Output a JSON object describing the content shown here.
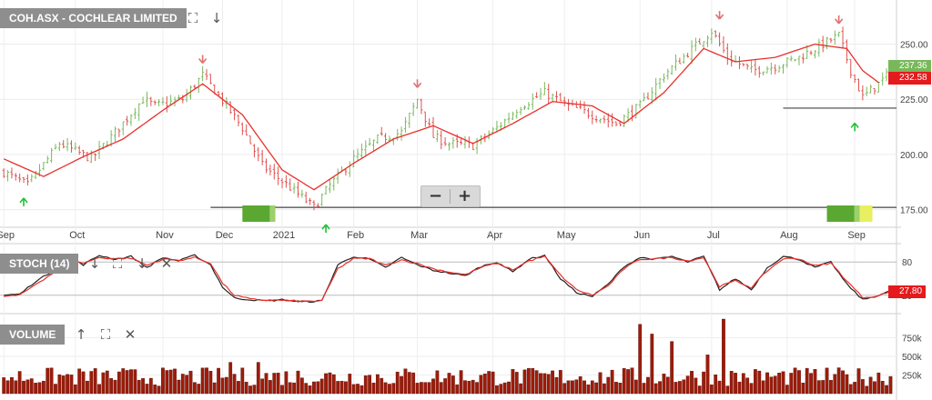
{
  "chart_header": {
    "title": "COH.ASX - COCHLEAR LIMITED",
    "expand_icon": "expand-icon",
    "download_icon": "arrow-down-icon"
  },
  "stoch_header": {
    "title": "STOCH (14)",
    "icons": [
      "arrow-down-icon",
      "expand-icon",
      "arrow-down-icon",
      "close-icon"
    ]
  },
  "volume_header": {
    "title": "VOLUME",
    "icons": [
      "arrow-up-icon",
      "expand-icon",
      "close-icon"
    ]
  },
  "zoom": {
    "minus": "−",
    "plus": "+"
  },
  "price_tags": {
    "last": "237.36",
    "ma": "232.58",
    "stoch": "27.80"
  },
  "colors": {
    "up_candle": "#7ab85e",
    "down_candle": "#e05050",
    "ma_line": "#e8302a",
    "stoch_k": "#222222",
    "stoch_d": "#e8302a",
    "volume_bar": "#9e1b0a",
    "buy_arrow": "#22c03a",
    "sell_arrow": "#e07070"
  },
  "chart_data": [
    {
      "type": "line",
      "panel": "price",
      "yticks": [
        "250.00",
        "225.00",
        "200.00",
        "175.00"
      ],
      "ylim": [
        167,
        270
      ],
      "x_ticks": [
        "Sep",
        "Oct",
        "Nov",
        "Dec",
        "2021",
        "Feb",
        "Mar",
        "Apr",
        "May",
        "Jun",
        "Jul",
        "Aug",
        "Sep"
      ],
      "x_tick_positions": [
        0,
        18,
        40,
        55,
        70,
        88,
        104,
        123,
        141,
        160,
        178,
        197,
        214
      ],
      "close_anchors": [
        [
          0,
          192
        ],
        [
          6,
          186
        ],
        [
          14,
          205
        ],
        [
          22,
          198
        ],
        [
          28,
          210
        ],
        [
          35,
          225
        ],
        [
          38,
          222
        ],
        [
          45,
          225
        ],
        [
          50,
          236
        ],
        [
          56,
          222
        ],
        [
          60,
          212
        ],
        [
          65,
          195
        ],
        [
          72,
          185
        ],
        [
          78,
          176
        ],
        [
          82,
          186
        ],
        [
          88,
          198
        ],
        [
          94,
          207
        ],
        [
          100,
          210
        ],
        [
          104,
          225
        ],
        [
          108,
          208
        ],
        [
          112,
          205
        ],
        [
          118,
          204
        ],
        [
          124,
          212
        ],
        [
          130,
          222
        ],
        [
          136,
          228
        ],
        [
          142,
          222
        ],
        [
          148,
          218
        ],
        [
          154,
          214
        ],
        [
          160,
          222
        ],
        [
          166,
          236
        ],
        [
          172,
          246
        ],
        [
          178,
          256
        ],
        [
          182,
          244
        ],
        [
          188,
          238
        ],
        [
          194,
          240
        ],
        [
          200,
          244
        ],
        [
          206,
          250
        ],
        [
          210,
          254
        ],
        [
          213,
          238
        ],
        [
          216,
          226
        ],
        [
          220,
          232
        ],
        [
          223,
          237.36
        ]
      ],
      "ma_anchors": [
        [
          0,
          198
        ],
        [
          10,
          190
        ],
        [
          20,
          199
        ],
        [
          30,
          207
        ],
        [
          40,
          220
        ],
        [
          50,
          232
        ],
        [
          60,
          218
        ],
        [
          70,
          193
        ],
        [
          78,
          184
        ],
        [
          88,
          196
        ],
        [
          98,
          207
        ],
        [
          108,
          213
        ],
        [
          118,
          205
        ],
        [
          128,
          214
        ],
        [
          138,
          224
        ],
        [
          148,
          222
        ],
        [
          156,
          214
        ],
        [
          166,
          228
        ],
        [
          176,
          248
        ],
        [
          184,
          242
        ],
        [
          194,
          244
        ],
        [
          204,
          250
        ],
        [
          212,
          248
        ],
        [
          216,
          238
        ],
        [
          220,
          232.58
        ]
      ],
      "support_line_low": 176,
      "support_line_high": 221,
      "buy_signals": [
        [
          5,
          186
        ],
        [
          81,
          174
        ],
        [
          214,
          220
        ]
      ],
      "sell_signals": [
        [
          50,
          236
        ],
        [
          104,
          225
        ],
        [
          180,
          256
        ],
        [
          210,
          254
        ]
      ]
    },
    {
      "type": "line",
      "panel": "stochastic",
      "name": "STOCH (14)",
      "yticks": [
        "80",
        "20"
      ],
      "ylim": [
        0,
        100
      ],
      "k_anchors": [
        [
          0,
          20
        ],
        [
          4,
          22
        ],
        [
          8,
          45
        ],
        [
          12,
          62
        ],
        [
          16,
          88
        ],
        [
          20,
          75
        ],
        [
          24,
          92
        ],
        [
          28,
          85
        ],
        [
          32,
          90
        ],
        [
          36,
          70
        ],
        [
          40,
          88
        ],
        [
          44,
          82
        ],
        [
          48,
          92
        ],
        [
          52,
          75
        ],
        [
          55,
          35
        ],
        [
          58,
          15
        ],
        [
          62,
          12
        ],
        [
          66,
          10
        ],
        [
          70,
          12
        ],
        [
          75,
          8
        ],
        [
          80,
          10
        ],
        [
          84,
          75
        ],
        [
          88,
          90
        ],
        [
          92,
          85
        ],
        [
          96,
          70
        ],
        [
          100,
          88
        ],
        [
          104,
          75
        ],
        [
          108,
          65
        ],
        [
          112,
          60
        ],
        [
          116,
          55
        ],
        [
          120,
          72
        ],
        [
          124,
          80
        ],
        [
          128,
          62
        ],
        [
          132,
          85
        ],
        [
          136,
          92
        ],
        [
          140,
          50
        ],
        [
          144,
          25
        ],
        [
          148,
          18
        ],
        [
          152,
          40
        ],
        [
          156,
          72
        ],
        [
          160,
          88
        ],
        [
          164,
          85
        ],
        [
          168,
          90
        ],
        [
          172,
          80
        ],
        [
          176,
          90
        ],
        [
          180,
          30
        ],
        [
          184,
          50
        ],
        [
          188,
          30
        ],
        [
          192,
          70
        ],
        [
          196,
          90
        ],
        [
          200,
          85
        ],
        [
          204,
          70
        ],
        [
          208,
          80
        ],
        [
          212,
          40
        ],
        [
          216,
          12
        ],
        [
          220,
          20
        ],
        [
          223,
          27.8
        ]
      ],
      "d_anchors": [
        [
          0,
          18
        ],
        [
          4,
          20
        ],
        [
          8,
          40
        ],
        [
          12,
          58
        ],
        [
          16,
          82
        ],
        [
          20,
          78
        ],
        [
          24,
          88
        ],
        [
          28,
          86
        ],
        [
          32,
          87
        ],
        [
          36,
          74
        ],
        [
          40,
          85
        ],
        [
          44,
          83
        ],
        [
          48,
          88
        ],
        [
          52,
          78
        ],
        [
          55,
          42
        ],
        [
          58,
          20
        ],
        [
          62,
          13
        ],
        [
          66,
          11
        ],
        [
          70,
          11
        ],
        [
          75,
          9
        ],
        [
          80,
          10
        ],
        [
          84,
          68
        ],
        [
          88,
          86
        ],
        [
          92,
          86
        ],
        [
          96,
          74
        ],
        [
          100,
          84
        ],
        [
          104,
          77
        ],
        [
          108,
          68
        ],
        [
          112,
          62
        ],
        [
          116,
          57
        ],
        [
          120,
          70
        ],
        [
          124,
          78
        ],
        [
          128,
          66
        ],
        [
          132,
          82
        ],
        [
          136,
          90
        ],
        [
          140,
          56
        ],
        [
          144,
          30
        ],
        [
          148,
          20
        ],
        [
          152,
          37
        ],
        [
          156,
          68
        ],
        [
          160,
          85
        ],
        [
          164,
          86
        ],
        [
          168,
          88
        ],
        [
          172,
          82
        ],
        [
          176,
          88
        ],
        [
          180,
          36
        ],
        [
          184,
          46
        ],
        [
          188,
          34
        ],
        [
          192,
          64
        ],
        [
          196,
          86
        ],
        [
          200,
          86
        ],
        [
          204,
          73
        ],
        [
          208,
          78
        ],
        [
          212,
          46
        ],
        [
          216,
          16
        ],
        [
          220,
          19
        ],
        [
          223,
          27.8
        ]
      ]
    },
    {
      "type": "bar",
      "panel": "volume",
      "name": "VOLUME",
      "yticks": [
        "750k",
        "500k",
        "250k"
      ],
      "ylim": [
        0,
        1000000
      ],
      "typical_range": [
        100000,
        350000
      ],
      "spikes": [
        [
          160,
          930000
        ],
        [
          163,
          800000
        ],
        [
          168,
          700000
        ],
        [
          177,
          520000
        ],
        [
          181,
          1000000
        ],
        [
          57,
          420000
        ],
        [
          64,
          420000
        ]
      ]
    }
  ]
}
